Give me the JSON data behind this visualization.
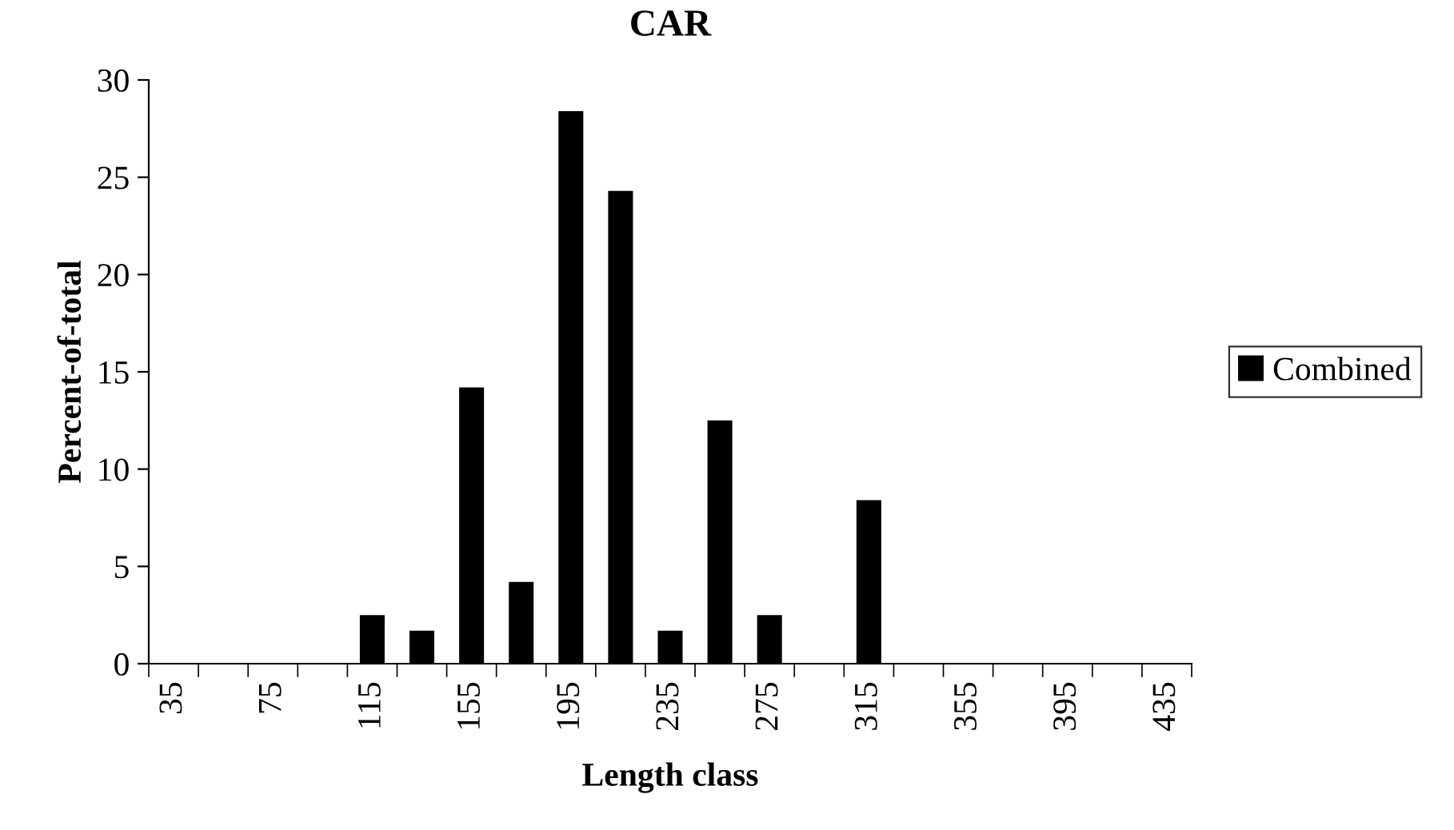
{
  "chart_data": {
    "type": "bar",
    "title": "CAR",
    "xlabel": "Length class",
    "ylabel": "Percent-of-total",
    "categories": [
      "35",
      null,
      "75",
      null,
      "115",
      null,
      "155",
      null,
      "195",
      null,
      "235",
      null,
      "275",
      null,
      "315",
      null,
      "355",
      null,
      "395",
      null,
      "435"
    ],
    "series": [
      {
        "name": "Combined",
        "color": "#000000",
        "values": [
          0,
          0,
          0,
          0,
          2.5,
          1.7,
          14.2,
          4.2,
          28.4,
          24.3,
          1.7,
          12.5,
          2.5,
          0,
          8.4,
          0,
          0,
          0,
          0,
          0,
          0
        ]
      }
    ],
    "ylim": [
      0,
      30
    ],
    "yticks": [
      0,
      5,
      10,
      15,
      20,
      25,
      30
    ],
    "grid": false,
    "legend": "right"
  }
}
